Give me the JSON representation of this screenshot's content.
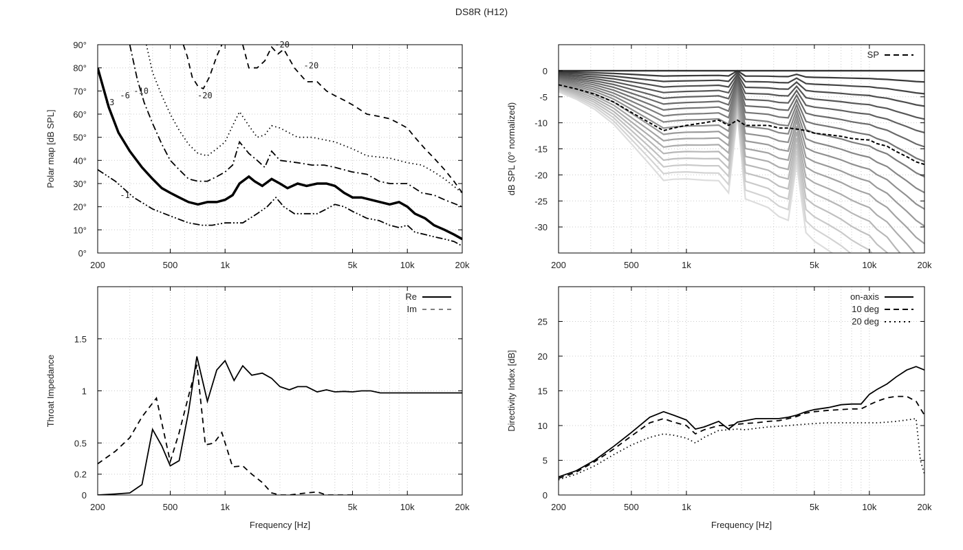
{
  "title": "DS8R (H12)",
  "chart_data": [
    {
      "id": "polar",
      "type": "line",
      "xlabel": "",
      "ylabel": "Polar map [dB SPL]",
      "xscale": "log",
      "xlim": [
        200,
        20000
      ],
      "ylim": [
        0,
        90
      ],
      "xticks": [
        200,
        500,
        1000,
        5000,
        10000,
        20000
      ],
      "xticklabels": [
        "200",
        "500",
        "1k",
        "5k",
        "10k",
        "20k"
      ],
      "yticks": [
        0,
        10,
        20,
        30,
        40,
        50,
        60,
        70,
        80,
        90
      ],
      "yticklabels": [
        "0°",
        "10°",
        "20°",
        "30°",
        "40°",
        "50°",
        "60°",
        "70°",
        "80°",
        "90°"
      ],
      "grid": true,
      "series": [
        {
          "name": "-1",
          "style": "dashdotdot",
          "x": [
            200,
            250,
            315,
            400,
            500,
            630,
            750,
            850,
            1000,
            1120,
            1250,
            1500,
            1700,
            1900,
            2100,
            2400,
            2800,
            3200,
            3600,
            4000,
            4500,
            5000,
            6000,
            7000,
            8000,
            9000,
            10000,
            11000,
            12500,
            14000,
            16000,
            18000,
            20000
          ],
          "y": [
            36,
            31,
            24,
            19,
            16,
            13,
            12,
            12,
            13,
            13,
            13,
            17,
            20,
            24,
            20,
            17,
            17,
            17,
            19,
            21,
            20,
            18,
            15,
            14,
            12,
            11,
            12,
            9,
            8,
            7,
            6,
            5,
            3
          ]
        },
        {
          "name": "-3",
          "style": "thick",
          "x": [
            200,
            230,
            260,
            300,
            350,
            400,
            450,
            500,
            560,
            630,
            710,
            800,
            900,
            1000,
            1100,
            1200,
            1350,
            1450,
            1600,
            1800,
            2000,
            2200,
            2500,
            2800,
            3200,
            3600,
            4000,
            4500,
            5000,
            5600,
            6300,
            7100,
            8000,
            9000,
            10000,
            11000,
            12500,
            14000,
            16000,
            18000,
            20000
          ],
          "y": [
            80,
            63,
            52,
            44,
            37,
            32,
            28,
            26,
            24,
            22,
            21,
            22,
            22,
            23,
            25,
            30,
            33,
            31,
            29,
            32,
            30,
            28,
            30,
            29,
            30,
            30,
            29,
            26,
            24,
            24,
            23,
            22,
            21,
            22,
            20,
            17,
            15,
            12,
            10,
            8,
            6
          ]
        },
        {
          "name": "-6",
          "style": "dashdot",
          "x": [
            300,
            330,
            360,
            400,
            450,
            500,
            560,
            630,
            710,
            800,
            900,
            1000,
            1100,
            1200,
            1350,
            1500,
            1650,
            1800,
            2000,
            2500,
            3000,
            3500,
            4000,
            5000,
            6000,
            7000,
            8000,
            10000,
            12000,
            14000,
            16000,
            20000
          ],
          "y": [
            90,
            75,
            65,
            56,
            47,
            40,
            36,
            32,
            31,
            31,
            33,
            35,
            38,
            48,
            43,
            40,
            37,
            44,
            40,
            39,
            38,
            38,
            37,
            35,
            34,
            31,
            30,
            30,
            26,
            25,
            23,
            20
          ]
        },
        {
          "name": "-10",
          "style": "dotted",
          "x": [
            370,
            400,
            450,
            500,
            560,
            630,
            710,
            800,
            900,
            1000,
            1100,
            1200,
            1350,
            1500,
            1650,
            1800,
            2000,
            2500,
            3000,
            4000,
            5000,
            6000,
            8000,
            10000,
            12000,
            14000,
            16000,
            20000
          ],
          "y": [
            90,
            78,
            68,
            60,
            53,
            47,
            43,
            42,
            45,
            48,
            55,
            61,
            55,
            50,
            51,
            55,
            54,
            50,
            50,
            48,
            45,
            42,
            41,
            39,
            38,
            35,
            32,
            26
          ]
        },
        {
          "name": "-20",
          "style": "dashed",
          "x": [
            590,
            620,
            660,
            710,
            760,
            820,
            900,
            960
          ],
          "y": [
            90,
            85,
            76,
            72,
            71,
            76,
            85,
            90
          ]
        },
        {
          "name": "-20",
          "style": "dashed",
          "x": [
            1250,
            1350,
            1500,
            1650,
            1800,
            1950,
            2100,
            2400,
            2800,
            3200,
            3600,
            4000,
            4500,
            5000,
            6000,
            7000,
            8000,
            9000,
            10000,
            11000,
            12500,
            14000,
            16000,
            18000,
            20000
          ],
          "y": [
            90,
            80,
            80,
            83,
            89,
            86,
            88,
            80,
            74,
            74,
            70,
            68,
            66,
            64,
            60,
            59,
            58,
            56,
            54,
            50,
            45,
            41,
            36,
            31,
            26
          ]
        }
      ],
      "annotations": [
        {
          "text": "-1",
          "x": 265,
          "y": 25
        },
        {
          "text": "-3",
          "x": 218,
          "y": 65
        },
        {
          "text": "-6",
          "x": 265,
          "y": 68
        },
        {
          "text": "-10",
          "x": 315,
          "y": 70
        },
        {
          "text": "-20",
          "x": 705,
          "y": 68
        },
        {
          "text": "-20",
          "x": 1870,
          "y": 90
        },
        {
          "text": "-20",
          "x": 2700,
          "y": 81
        }
      ]
    },
    {
      "id": "normalized",
      "type": "line",
      "xlabel": "",
      "ylabel": "dB SPL (0° normalized)",
      "xscale": "log",
      "xlim": [
        200,
        20000
      ],
      "ylim": [
        -35,
        5
      ],
      "xticks": [
        200,
        500,
        1000,
        5000,
        10000,
        20000
      ],
      "xticklabels": [
        "200",
        "500",
        "1k",
        "5k",
        "10k",
        "20k"
      ],
      "yticks": [
        0,
        -5,
        -10,
        -15,
        -20,
        -25,
        -30
      ],
      "yticklabels": [
        "0",
        "-5",
        "-10",
        "-15",
        "-20",
        "-25",
        "-30"
      ],
      "grid": true,
      "legend": "top-right",
      "x": [
        200,
        250,
        315,
        400,
        500,
        630,
        750,
        850,
        1000,
        1250,
        1500,
        1700,
        1900,
        2100,
        2400,
        2800,
        3200,
        3600,
        4000,
        4500,
        5000,
        6000,
        7000,
        8000,
        9000,
        10000,
        11000,
        12500,
        14000,
        16000,
        18000,
        20000
      ],
      "angle_curve_count": 18,
      "angle_curve_colors": [
        "#3a3a3a",
        "#dddddd"
      ],
      "sp": {
        "name": "SP",
        "y": [
          -2.7,
          -3.5,
          -4.5,
          -6,
          -8,
          -10,
          -11.5,
          -11,
          -10.5,
          -10,
          -9.5,
          -10.5,
          -9.5,
          -10.5,
          -10.5,
          -10.5,
          -11,
          -11,
          -11.2,
          -11.5,
          -12,
          -12.3,
          -12.6,
          -13,
          -13.2,
          -13.3,
          -14,
          -14.5,
          -15.5,
          -16.5,
          -17.5,
          -18
        ]
      }
    },
    {
      "id": "impedance",
      "type": "line",
      "xlabel": "Frequency [Hz]",
      "ylabel": "Throat Impedance",
      "xscale": "log",
      "xlim": [
        200,
        20000
      ],
      "ylim": [
        0,
        2
      ],
      "xticks": [
        200,
        500,
        1000,
        5000,
        10000,
        20000
      ],
      "xticklabels": [
        "200",
        "500",
        "1k",
        "5k",
        "10k",
        "20k"
      ],
      "yticks": [
        0,
        0.2,
        0.5,
        1,
        1.5
      ],
      "yticklabels": [
        "0",
        "0.2",
        "0.5",
        "1",
        "1.5"
      ],
      "grid": true,
      "legend": "top-right",
      "series": [
        {
          "name": "Re",
          "style": "solid",
          "x": [
            200,
            250,
            300,
            350,
            400,
            450,
            500,
            560,
            630,
            700,
            800,
            900,
            1000,
            1120,
            1250,
            1400,
            1600,
            1800,
            2000,
            2250,
            2500,
            2800,
            3200,
            3600,
            4000,
            4500,
            5000,
            5600,
            6300,
            7100,
            8000,
            9000,
            10000,
            11200,
            12500,
            14000,
            16000,
            18000,
            20000
          ],
          "y": [
            0.0,
            0.01,
            0.02,
            0.1,
            0.63,
            0.47,
            0.28,
            0.33,
            0.8,
            1.33,
            0.9,
            1.2,
            1.29,
            1.1,
            1.24,
            1.15,
            1.17,
            1.12,
            1.04,
            1.01,
            1.04,
            1.04,
            0.99,
            1.01,
            0.99,
            0.995,
            0.99,
            1.0,
            1.0,
            0.98,
            0.98,
            0.98,
            0.98,
            0.98,
            0.98,
            0.98,
            0.98,
            0.98,
            0.98
          ]
        },
        {
          "name": "Im",
          "style": "dashed",
          "x": [
            200,
            250,
            300,
            350,
            420,
            500,
            560,
            630,
            700,
            780,
            870,
            960,
            1100,
            1250,
            1400,
            1600,
            1800,
            2000,
            2250,
            2500,
            2800,
            3200,
            3600,
            4000,
            4500,
            5000
          ],
          "y": [
            0.3,
            0.42,
            0.55,
            0.75,
            0.93,
            0.32,
            0.6,
            0.95,
            1.25,
            0.48,
            0.5,
            0.6,
            0.27,
            0.28,
            0.2,
            0.12,
            0.02,
            0.0,
            0.0,
            0.01,
            0.02,
            0.03,
            0.0,
            0.0,
            0.0,
            0.0
          ]
        }
      ]
    },
    {
      "id": "directivity",
      "type": "line",
      "xlabel": "Frequency [Hz]",
      "ylabel": "Directivity Index [dB]",
      "xscale": "log",
      "xlim": [
        200,
        20000
      ],
      "ylim": [
        0,
        30
      ],
      "xticks": [
        200,
        500,
        1000,
        5000,
        10000,
        20000
      ],
      "xticklabels": [
        "200",
        "500",
        "1k",
        "5k",
        "10k",
        "20k"
      ],
      "yticks": [
        0,
        5,
        10,
        15,
        20,
        25
      ],
      "yticklabels": [
        "0",
        "5",
        "10",
        "15",
        "20",
        "25"
      ],
      "grid": true,
      "legend": "top-right",
      "series": [
        {
          "name": "on-axis",
          "style": "solid",
          "x": [
            200,
            250,
            315,
            400,
            500,
            630,
            750,
            850,
            1000,
            1120,
            1250,
            1500,
            1700,
            1900,
            2100,
            2400,
            2800,
            3200,
            3600,
            4000,
            4500,
            5000,
            6000,
            7000,
            8000,
            9000,
            10000,
            11000,
            12500,
            14000,
            16000,
            18000,
            20000
          ],
          "y": [
            2.6,
            3.5,
            5,
            7,
            9,
            11.2,
            12,
            11.5,
            10.8,
            9.5,
            9.8,
            10.6,
            9.5,
            10.5,
            10.7,
            11,
            11,
            11,
            11.2,
            11.5,
            12,
            12.3,
            12.6,
            13,
            13.1,
            13.1,
            14.5,
            15.2,
            16,
            17,
            18,
            18.5,
            18
          ]
        },
        {
          "name": "10 deg",
          "style": "dashed",
          "x": [
            200,
            250,
            315,
            400,
            500,
            630,
            750,
            850,
            1000,
            1120,
            1250,
            1500,
            1700,
            1900,
            2100,
            2400,
            2800,
            3200,
            3600,
            4000,
            4500,
            5000,
            6000,
            7000,
            8000,
            9000,
            10000,
            11000,
            12500,
            14000,
            16000,
            18000,
            20000
          ],
          "y": [
            2.4,
            3.3,
            4.8,
            6.6,
            8.5,
            10.4,
            11,
            10.5,
            10,
            8.8,
            9.4,
            10,
            10,
            10.2,
            10.3,
            10.4,
            10.6,
            10.7,
            11,
            11.3,
            11.8,
            12,
            12.2,
            12.3,
            12.4,
            12.4,
            13,
            13.5,
            14,
            14.2,
            14.2,
            13.5,
            11.5
          ]
        },
        {
          "name": "20 deg",
          "style": "dotted",
          "x": [
            200,
            250,
            315,
            400,
            500,
            630,
            750,
            850,
            1000,
            1120,
            1250,
            1500,
            1700,
            1900,
            2100,
            2400,
            2800,
            3200,
            3600,
            4000,
            4500,
            5000,
            6000,
            7000,
            8000,
            9000,
            10000,
            11000,
            12500,
            14000,
            16000,
            18000,
            19000,
            20000
          ],
          "y": [
            2.2,
            3,
            4.2,
            5.8,
            7.2,
            8.3,
            8.8,
            8.6,
            8.2,
            7.5,
            8.3,
            9.3,
            9.4,
            9.5,
            9.4,
            9.6,
            9.8,
            9.9,
            10,
            10.1,
            10.2,
            10.3,
            10.4,
            10.4,
            10.4,
            10.4,
            10.4,
            10.4,
            10.5,
            10.6,
            10.8,
            11,
            5,
            3
          ]
        }
      ]
    }
  ]
}
